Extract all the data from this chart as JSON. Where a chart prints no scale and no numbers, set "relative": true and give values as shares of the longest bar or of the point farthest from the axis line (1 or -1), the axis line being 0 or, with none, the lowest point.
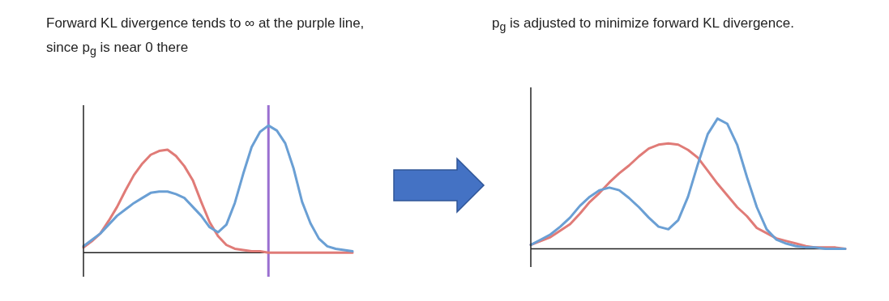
{
  "chart_data": [
    {
      "type": "line",
      "title": "Forward KL divergence tends to ∞ at the purple line, since  p$_{g}$ is near 0 there",
      "relative": true,
      "marker": "none",
      "line_style": "solid",
      "categories": [
        null,
        null,
        null,
        null,
        null,
        null,
        null,
        null,
        null,
        null,
        null,
        null,
        null,
        null,
        null,
        null,
        null,
        null,
        null,
        null,
        null,
        null,
        null,
        null,
        null,
        null,
        null,
        null,
        null,
        null,
        null,
        null,
        null
      ],
      "series": [
        {
          "color": "#e07b77",
          "values": [
            0.04,
            0.09,
            0.15,
            0.25,
            0.36,
            0.49,
            0.61,
            0.7,
            0.77,
            0.8,
            0.81,
            0.76,
            0.68,
            0.57,
            0.4,
            0.24,
            0.13,
            0.06,
            0.03,
            0.02,
            0.01,
            0.01,
            0,
            0,
            0,
            0,
            0,
            0,
            0,
            0,
            0,
            0,
            0
          ]
        },
        {
          "color": "#6a9fd4",
          "values": [
            0.05,
            0.1,
            0.15,
            0.22,
            0.29,
            0.34,
            0.39,
            0.43,
            0.47,
            0.48,
            0.48,
            0.46,
            0.43,
            0.36,
            0.29,
            0.2,
            0.16,
            0.22,
            0.39,
            0.62,
            0.83,
            0.95,
            1,
            0.96,
            0.86,
            0.66,
            0.4,
            0.23,
            0.11,
            0.05,
            0.03,
            0.02,
            0.01
          ]
        }
      ],
      "ref_lines": [
        {
          "axis": "x",
          "color": "#9a6fd0"
        }
      ]
    },
    {
      "type": "line",
      "title": "p$_{g}$ is adjusted to minimize forward KL divergence.",
      "relative": true,
      "marker": "none",
      "line_style": "solid",
      "categories": [
        null,
        null,
        null,
        null,
        null,
        null,
        null,
        null,
        null,
        null,
        null,
        null,
        null,
        null,
        null,
        null,
        null,
        null,
        null,
        null,
        null,
        null,
        null,
        null,
        null,
        null,
        null,
        null,
        null,
        null,
        null,
        null,
        null
      ],
      "series": [
        {
          "color": "#e07b77",
          "values": [
            0.03,
            0.06,
            0.09,
            0.14,
            0.19,
            0.27,
            0.36,
            0.43,
            0.51,
            0.58,
            0.64,
            0.71,
            0.77,
            0.8,
            0.81,
            0.8,
            0.76,
            0.7,
            0.6,
            0.5,
            0.41,
            0.32,
            0.25,
            0.16,
            0.12,
            0.08,
            0.06,
            0.04,
            0.02,
            0.01,
            0.01,
            0.01,
            0
          ]
        },
        {
          "color": "#6a9fd4",
          "values": [
            0.03,
            0.07,
            0.11,
            0.17,
            0.24,
            0.33,
            0.4,
            0.45,
            0.47,
            0.45,
            0.39,
            0.32,
            0.24,
            0.17,
            0.15,
            0.22,
            0.4,
            0.65,
            0.88,
            1,
            0.96,
            0.8,
            0.55,
            0.32,
            0.15,
            0.07,
            0.04,
            0.02,
            0.01,
            0.01,
            0,
            0,
            0
          ]
        }
      ]
    }
  ]
}
